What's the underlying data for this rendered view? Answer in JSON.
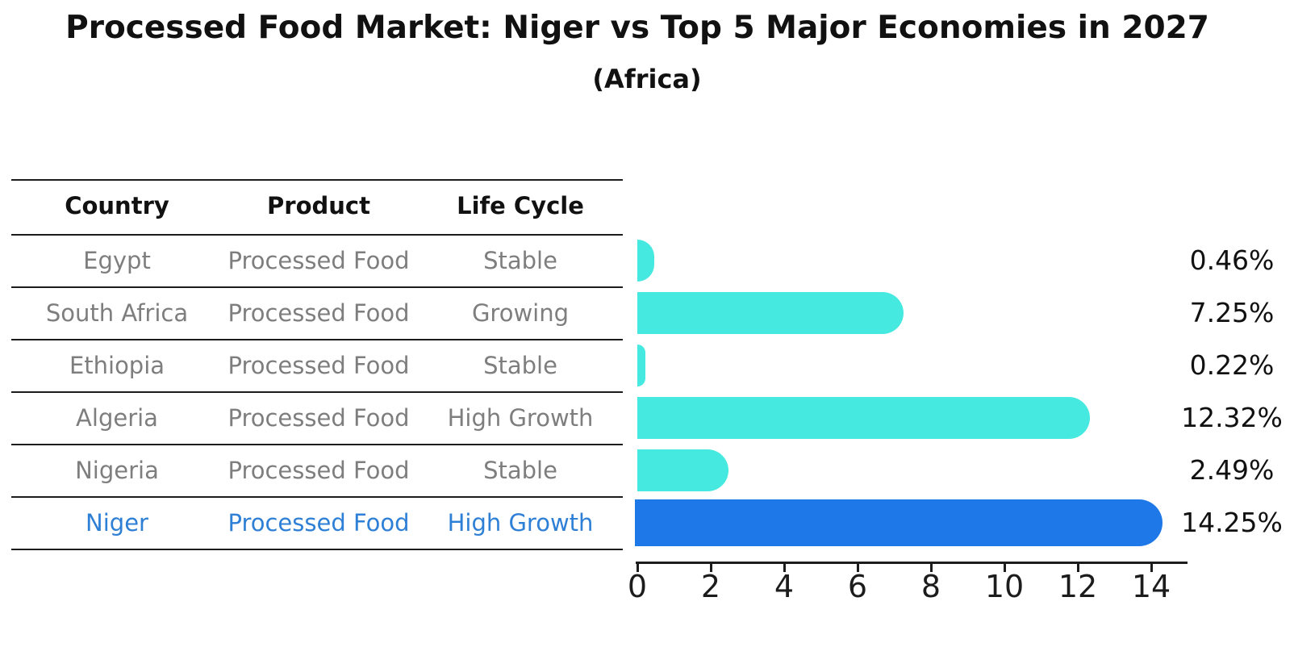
{
  "title": "Processed Food Market: Niger vs Top 5 Major Economies in 2027",
  "subtitle": "(Africa)",
  "table": {
    "columns": [
      "Country",
      "Product",
      "Life Cycle"
    ],
    "rows": [
      {
        "country": "Egypt",
        "product": "Processed Food",
        "life_cycle": "Stable",
        "value_label": "0.46%",
        "highlighted": false
      },
      {
        "country": "South Africa",
        "product": "Processed Food",
        "life_cycle": "Growing",
        "value_label": "7.25%",
        "highlighted": false
      },
      {
        "country": "Ethiopia",
        "product": "Processed Food",
        "life_cycle": "Stable",
        "value_label": "0.22%",
        "highlighted": false
      },
      {
        "country": "Algeria",
        "product": "Processed Food",
        "life_cycle": "High Growth",
        "value_label": "12.32%",
        "highlighted": false
      },
      {
        "country": "Nigeria",
        "product": "Processed Food",
        "life_cycle": "Stable",
        "value_label": "2.49%",
        "highlighted": false
      },
      {
        "country": "Niger",
        "product": "Processed Food",
        "life_cycle": "High Growth",
        "value_label": "14.25%",
        "highlighted": true
      }
    ]
  },
  "chart_data": {
    "type": "bar",
    "orientation": "horizontal",
    "title": "Processed Food Market: Niger vs Top 5 Major Economies in 2027",
    "subtitle": "(Africa)",
    "categories": [
      "Egypt",
      "South Africa",
      "Ethiopia",
      "Algeria",
      "Nigeria",
      "Niger"
    ],
    "values": [
      0.46,
      7.25,
      0.22,
      12.32,
      2.49,
      14.25
    ],
    "value_labels": [
      "0.46%",
      "7.25%",
      "0.22%",
      "12.32%",
      "2.49%",
      "14.25%"
    ],
    "highlighted_category": "Niger",
    "xlabel": "",
    "ylabel": "",
    "xlim": [
      0,
      15
    ],
    "xticks": [
      0,
      2,
      4,
      6,
      8,
      10,
      12,
      14
    ],
    "grid": false,
    "legend": "none",
    "colors": {
      "bar_default": "#45e9e0",
      "bar_highlight": "#1e78e8",
      "highlight_text": "#2e7fd6",
      "row_text": "#7e7e7e",
      "header_text": "#111111",
      "axis": "#1c1c1c"
    }
  }
}
